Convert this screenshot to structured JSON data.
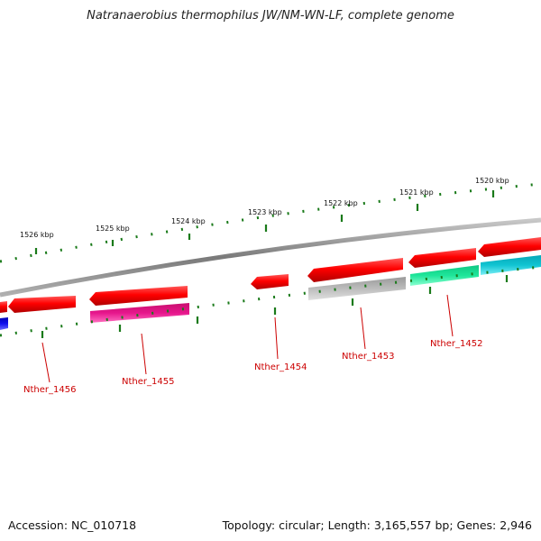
{
  "title": "Natranaerobius thermophilus JW/NM-WN-LF, complete genome",
  "footer": {
    "accession": "Accession: NC_010718",
    "summary": "Topology: circular; Length: 3,165,557 bp; Genes: 2,946"
  },
  "colors": {
    "backbone": "#8c8c8c",
    "tick": "#1a7a1a",
    "label": "#cc0000",
    "forward_strand": "#ff0000",
    "gene_magenta": "#e6168c",
    "gene_gray": "#b4b4b4",
    "gene_green": "#1ee69a",
    "gene_cyan": "#10c4d2",
    "gene_blue": "#1010ee"
  },
  "scale_labels": [
    "1526 kbp",
    "1525 kbp",
    "1524 kbp",
    "1523 kbp",
    "1522 kbp",
    "1521 kbp",
    "1520 kbp"
  ],
  "gene_labels": [
    "Nther_1456",
    "Nther_1455",
    "Nther_1454",
    "Nther_1453",
    "Nther_1452"
  ]
}
